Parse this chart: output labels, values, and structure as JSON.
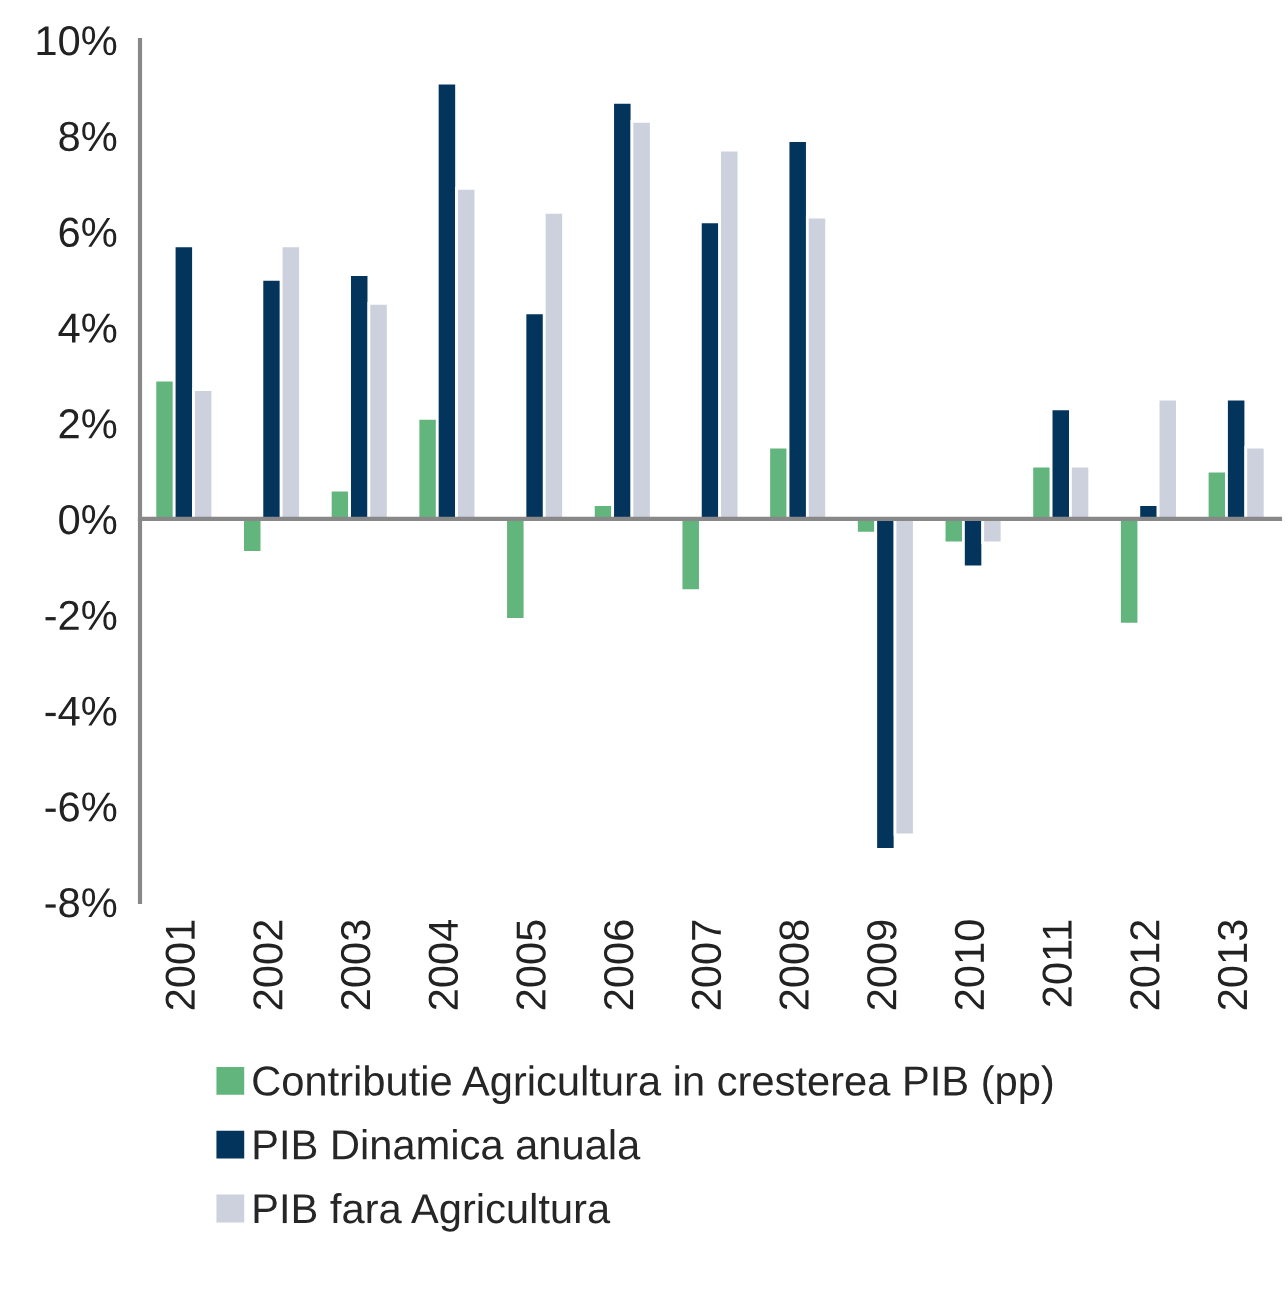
{
  "chart_data": {
    "type": "bar",
    "categories": [
      "2001",
      "2002",
      "2003",
      "2004",
      "2005",
      "2006",
      "2007",
      "2008",
      "2009",
      "2010",
      "2011",
      "2012",
      "2013"
    ],
    "series": [
      {
        "name": "Contributie Agricultura in cresterea PIB (pp)",
        "color": "#62b57c",
        "values": [
          2.9,
          -0.7,
          0.6,
          2.1,
          -2.1,
          0.3,
          -1.5,
          1.5,
          -0.3,
          -0.5,
          1.1,
          -2.2,
          1.0
        ]
      },
      {
        "name": "PIB Dinamica anuala",
        "color": "#03355c",
        "values": [
          5.7,
          5.0,
          5.1,
          9.1,
          4.3,
          8.7,
          6.2,
          7.9,
          -6.9,
          -1.0,
          2.3,
          0.3,
          2.5
        ]
      },
      {
        "name": "PIB fara Agricultura",
        "color": "#cdd1de",
        "values": [
          2.7,
          5.7,
          4.5,
          6.9,
          6.4,
          8.3,
          7.7,
          6.3,
          -6.6,
          -0.5,
          1.1,
          2.5,
          1.5
        ]
      }
    ],
    "ylim": [
      -8,
      10
    ],
    "yticks": [
      {
        "value": -8,
        "label": "-8%"
      },
      {
        "value": -6,
        "label": "-6%"
      },
      {
        "value": -4,
        "label": "-4%"
      },
      {
        "value": -2,
        "label": "-2%"
      },
      {
        "value": 0,
        "label": "0%"
      },
      {
        "value": 2,
        "label": "2%"
      },
      {
        "value": 4,
        "label": "4%"
      },
      {
        "value": 6,
        "label": "6%"
      },
      {
        "value": 8,
        "label": "8%"
      },
      {
        "value": 10,
        "label": "10%"
      }
    ],
    "legend": "bottom"
  }
}
